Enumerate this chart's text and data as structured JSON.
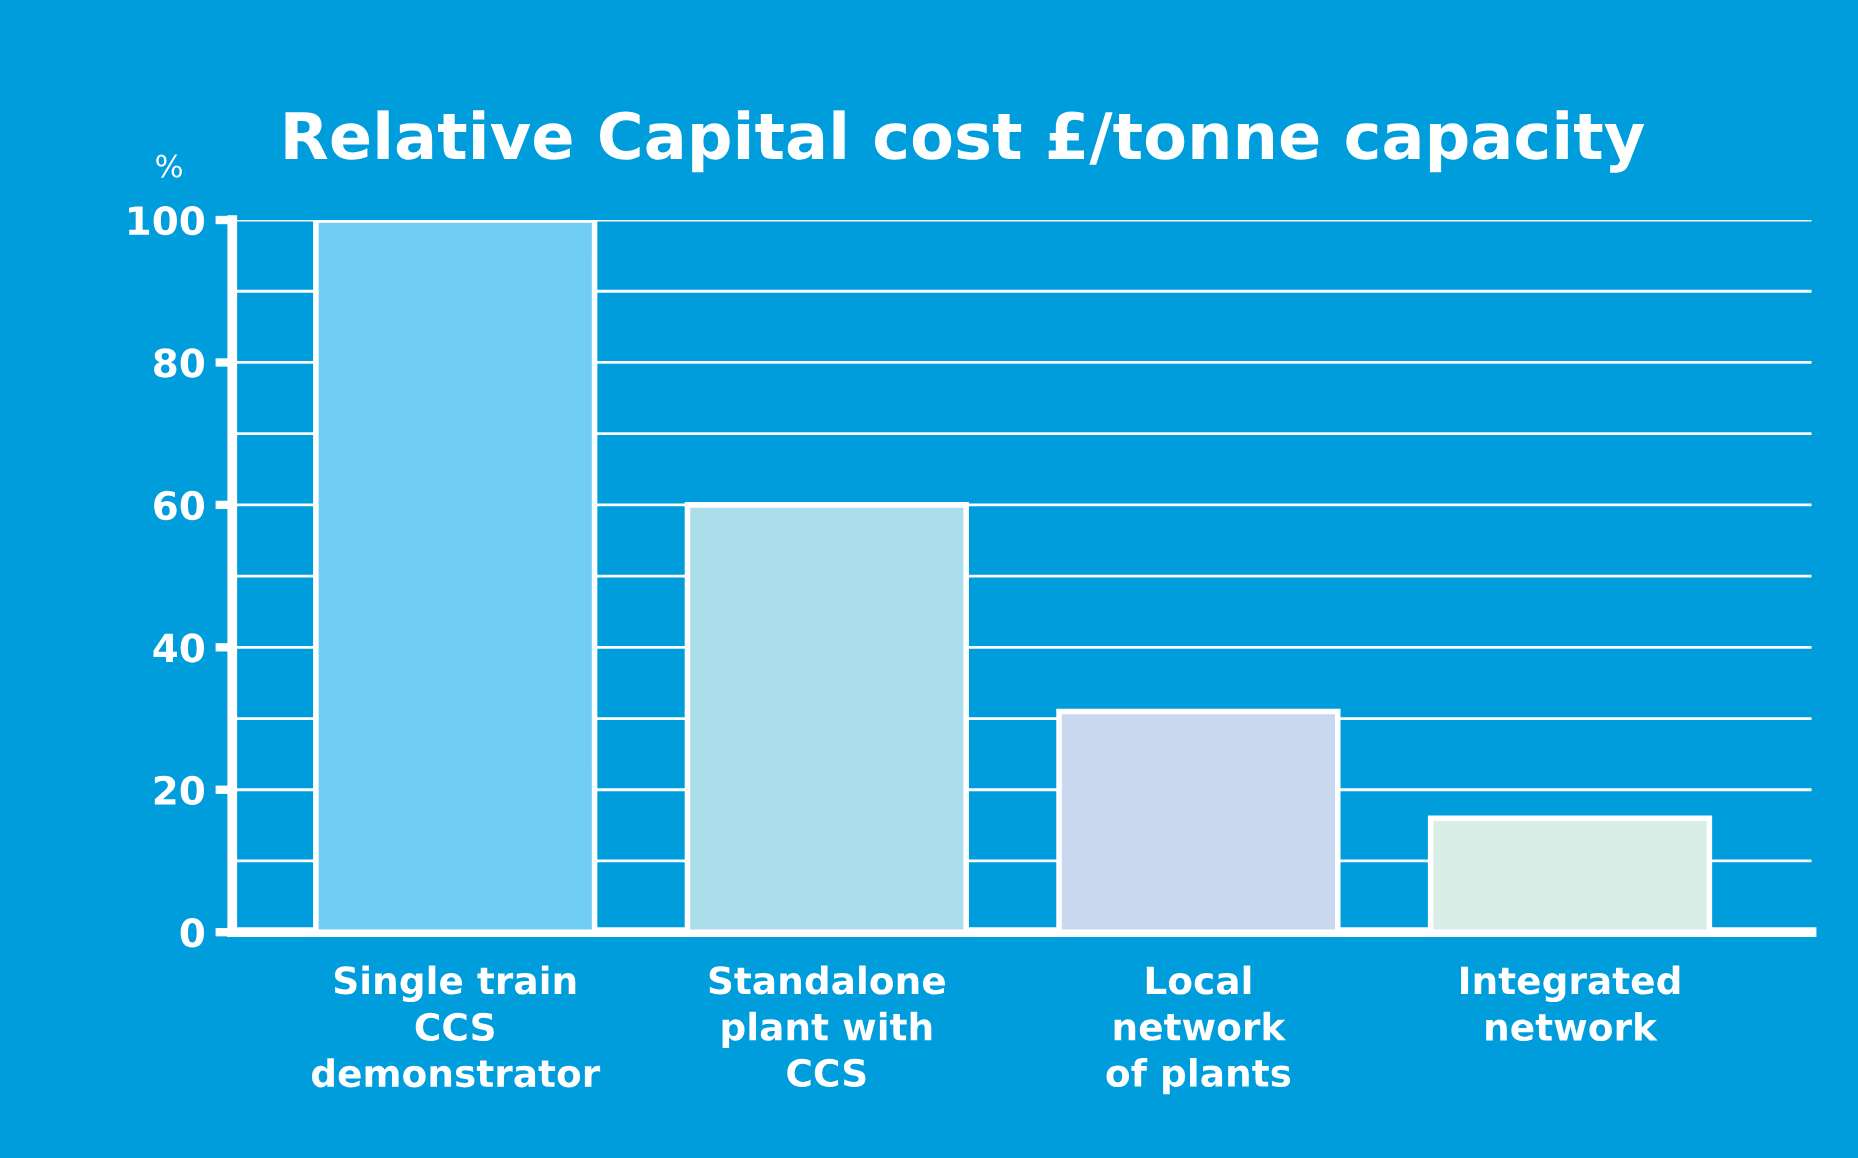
{
  "chart_data": {
    "type": "bar",
    "title": "Relative Capital cost £/tonne capacity",
    "ylabel": "%",
    "categories": [
      "Single train\nCCS\ndemonstrator",
      "Standalone\nplant with\nCCS",
      "Local\nnetwork\nof plants",
      "Integrated\nnetwork"
    ],
    "values": [
      100,
      60,
      31,
      16
    ],
    "colors": [
      "#72cdf4",
      "#abdeea",
      "#c9d8ef",
      "#d9eee7"
    ],
    "ylim": [
      0,
      100
    ],
    "yticks": [
      0,
      {
        "value": 10,
        "label": null
      },
      20,
      {
        "value": 30,
        "label": null
      },
      40,
      {
        "value": 50,
        "label": null
      },
      60,
      {
        "value": 70,
        "label": null
      },
      80,
      {
        "value": 90,
        "label": null
      },
      100
    ],
    "grid": "y"
  }
}
